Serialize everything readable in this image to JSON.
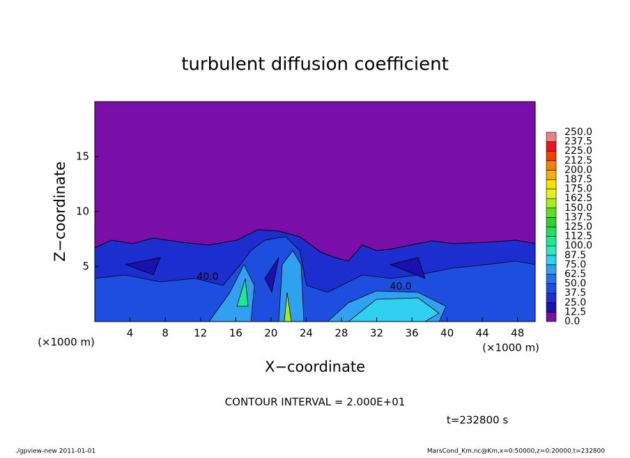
{
  "chart_data": {
    "type": "contour",
    "title": "turbulent diffusion coefficient",
    "xlabel": "X−coordinate",
    "ylabel": "Z−coordinate",
    "x_unit_left": "(×1000 m)",
    "x_unit_right": "(×1000 m)",
    "xlim": [
      0,
      50
    ],
    "xticks": [
      4,
      8,
      12,
      16,
      20,
      24,
      28,
      32,
      36,
      40,
      44,
      48
    ],
    "ylim": [
      0,
      20
    ],
    "yticks": [
      5,
      10,
      15
    ],
    "contour_interval": "CONTOUR INTERVAL = 2.000E+01",
    "time_label": "t=232800 s",
    "annotations": [
      "40.0",
      "40.0"
    ],
    "colorbar": {
      "levels": [
        {
          "value": 0,
          "label": "0.0"
        },
        {
          "value": 12.5,
          "label": "12.5"
        },
        {
          "value": 25,
          "label": "25.0"
        },
        {
          "value": 37.5,
          "label": "37.5"
        },
        {
          "value": 50,
          "label": "50.0"
        },
        {
          "value": 62.5,
          "label": "62.5"
        },
        {
          "value": 75,
          "label": "75.0"
        },
        {
          "value": 87.5,
          "label": "87.5"
        },
        {
          "value": 100,
          "label": "100.0"
        },
        {
          "value": 112.5,
          "label": "112.5"
        },
        {
          "value": 125,
          "label": "125.0"
        },
        {
          "value": 137.5,
          "label": "137.5"
        },
        {
          "value": 150,
          "label": "150.0"
        },
        {
          "value": 162.5,
          "label": "162.5"
        },
        {
          "value": 175,
          "label": "175.0"
        },
        {
          "value": 187.5,
          "label": "187.5"
        },
        {
          "value": 200,
          "label": "200.0"
        },
        {
          "value": 212.5,
          "label": "212.5"
        },
        {
          "value": 225,
          "label": "225.0"
        },
        {
          "value": 237.5,
          "label": "237.5"
        },
        {
          "value": 250,
          "label": "250.0"
        }
      ],
      "colors": [
        "#7a0ea8",
        "#1a10b0",
        "#1c2ed0",
        "#1e4ee0",
        "#2a6ef0",
        "#30a0f0",
        "#30d0f0",
        "#30e8c0",
        "#20e890",
        "#20e060",
        "#30d030",
        "#60e020",
        "#a0f020",
        "#e0f020",
        "#f8e000",
        "#f8b000",
        "#f88000",
        "#f04000",
        "#f01020",
        "#f08080"
      ]
    },
    "footer_left": "./gpview-new   2011-01-01",
    "footer_right": "MarsCond_Km.nc@Km,x=0:50000,z=0:20000,t=232800"
  }
}
